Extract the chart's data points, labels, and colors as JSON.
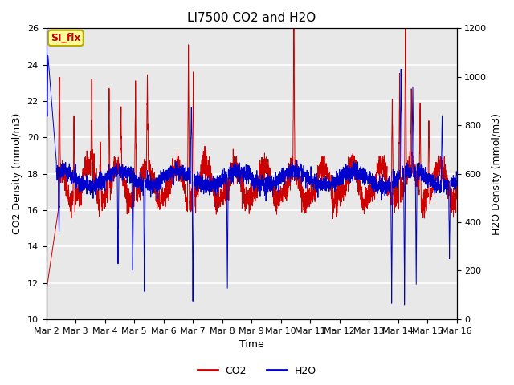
{
  "title": "LI7500 CO2 and H2O",
  "xlabel": "Time",
  "ylabel_left": "CO2 Density (mmol/m3)",
  "ylabel_right": "H2O Density (mmol/m3)",
  "ylim_left": [
    10,
    26
  ],
  "ylim_right": [
    0,
    1200
  ],
  "yticks_left": [
    10,
    12,
    14,
    16,
    18,
    20,
    22,
    24,
    26
  ],
  "yticks_right": [
    0,
    200,
    400,
    600,
    800,
    1000,
    1200
  ],
  "color_co2": "#cc0000",
  "color_h2o": "#0000cc",
  "legend_labels": [
    "CO2",
    "H2O"
  ],
  "annotation_text": "SI_flx",
  "annotation_bg": "#ffff99",
  "annotation_border": "#bbaa00",
  "background_color": "#e8e8e8",
  "grid_color": "#ffffff",
  "title_fontsize": 11,
  "axis_fontsize": 9,
  "tick_fontsize": 8,
  "legend_fontsize": 9,
  "xtick_dates": [
    "Mar 2",
    "Mar 3",
    "Mar 4",
    "Mar 5",
    "Mar 6",
    "Mar 7",
    "Mar 8",
    "Mar 9",
    "Mar 10",
    "Mar 11",
    "Mar 12",
    "Mar 13",
    "Mar 14",
    "Mar 15",
    "Mar 16"
  ]
}
